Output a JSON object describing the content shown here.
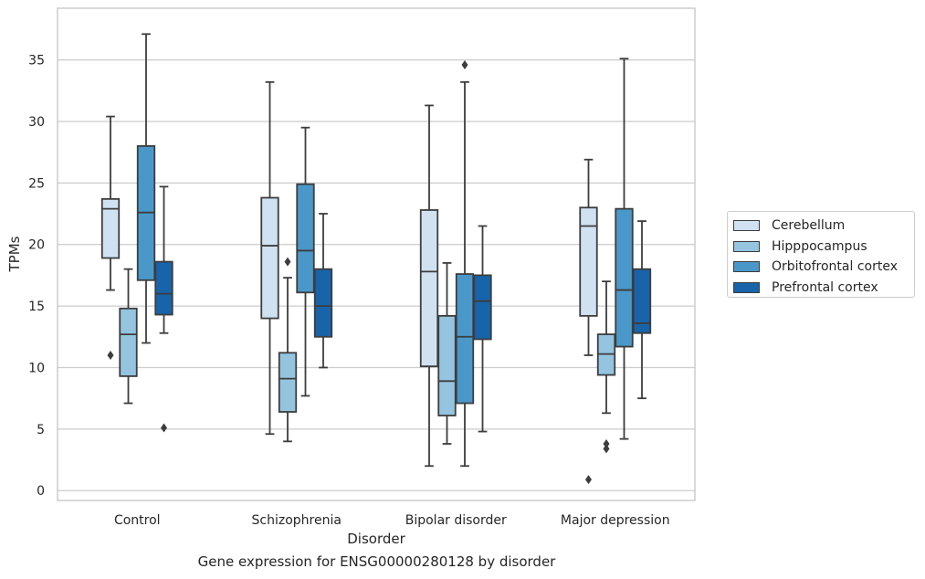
{
  "chart_data": {
    "type": "box",
    "xlabel": "Disorder",
    "ylabel": "TPMs",
    "caption": "Gene expression for ENSG00000280128 by disorder",
    "categories": [
      "Control",
      "Schizophrenia",
      "Bipolar disorder",
      "Major depression"
    ],
    "ylim": [
      -0.8,
      39.2
    ],
    "yticks": [
      0,
      5,
      10,
      15,
      20,
      25,
      30,
      35
    ],
    "grid": "horizontal",
    "legend_position": "right",
    "series": [
      {
        "name": "Cerebellum",
        "color": "#d0e1f2",
        "boxes": [
          {
            "min": 16.3,
            "q1": 18.9,
            "median": 22.9,
            "q3": 23.7,
            "max": 30.4,
            "outliers": [
              11.0
            ]
          },
          {
            "min": 4.6,
            "q1": 14.0,
            "median": 19.9,
            "q3": 23.8,
            "max": 33.2,
            "outliers": []
          },
          {
            "min": 2.0,
            "q1": 10.1,
            "median": 17.8,
            "q3": 22.8,
            "max": 31.3,
            "outliers": []
          },
          {
            "min": 11.0,
            "q1": 14.2,
            "median": 21.5,
            "q3": 23.0,
            "max": 26.9,
            "outliers": [
              0.9
            ]
          }
        ]
      },
      {
        "name": "Hipppocampus",
        "color": "#94c4df",
        "boxes": [
          {
            "min": 7.1,
            "q1": 9.3,
            "median": 12.7,
            "q3": 14.8,
            "max": 18.0,
            "outliers": []
          },
          {
            "min": 4.0,
            "q1": 6.4,
            "median": 9.1,
            "q3": 11.2,
            "max": 17.3,
            "outliers": [
              18.6
            ]
          },
          {
            "min": 3.8,
            "q1": 6.1,
            "median": 8.9,
            "q3": 14.2,
            "max": 18.5,
            "outliers": []
          },
          {
            "min": 6.3,
            "q1": 9.4,
            "median": 11.1,
            "q3": 12.7,
            "max": 17.0,
            "outliers": [
              3.4,
              3.8
            ]
          }
        ]
      },
      {
        "name": "Orbitofrontal cortex",
        "color": "#4a98c9",
        "boxes": [
          {
            "min": 12.0,
            "q1": 17.1,
            "median": 22.6,
            "q3": 28.0,
            "max": 37.1,
            "outliers": []
          },
          {
            "min": 7.7,
            "q1": 16.1,
            "median": 19.5,
            "q3": 24.9,
            "max": 29.5,
            "outliers": []
          },
          {
            "min": 2.0,
            "q1": 7.1,
            "median": 12.5,
            "q3": 17.6,
            "max": 33.2,
            "outliers": [
              34.6
            ]
          },
          {
            "min": 4.2,
            "q1": 11.7,
            "median": 16.3,
            "q3": 22.9,
            "max": 35.1,
            "outliers": []
          }
        ]
      },
      {
        "name": "Prefrontal cortex",
        "color": "#1764ab",
        "boxes": [
          {
            "min": 12.8,
            "q1": 14.3,
            "median": 16.0,
            "q3": 18.6,
            "max": 24.7,
            "outliers": [
              5.1
            ]
          },
          {
            "min": 10.0,
            "q1": 12.5,
            "median": 15.0,
            "q3": 18.0,
            "max": 22.5,
            "outliers": []
          },
          {
            "min": 4.8,
            "q1": 12.3,
            "median": 15.4,
            "q3": 17.5,
            "max": 21.5,
            "outliers": []
          },
          {
            "min": 7.5,
            "q1": 12.8,
            "median": 13.6,
            "q3": 18.0,
            "max": 21.9,
            "outliers": []
          }
        ]
      }
    ]
  }
}
